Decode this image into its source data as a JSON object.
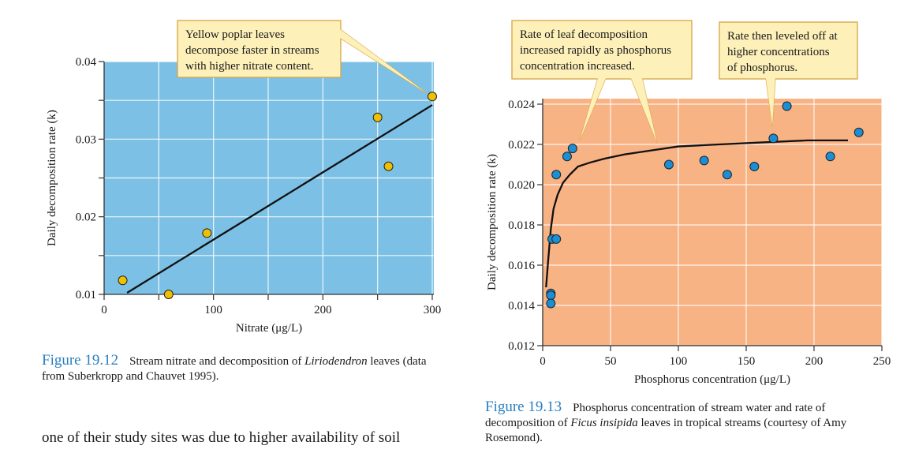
{
  "chart_data": [
    {
      "type": "scatter",
      "xlabel": "Nitrate (μg/L)",
      "ylabel": "Daily decomposition rate (k)",
      "xlim": [
        0,
        300
      ],
      "ylim": [
        0.01,
        0.04
      ],
      "x_ticks": [
        "0",
        "100",
        "200",
        "300"
      ],
      "y_ticks": [
        "0.01",
        "0.02",
        "0.03",
        "0.04"
      ],
      "grid": true,
      "background_color": "#7cc1e5",
      "point_color": "#f0c000",
      "points": [
        {
          "x": 17,
          "y": 0.0118
        },
        {
          "x": 59,
          "y": 0.01
        },
        {
          "x": 94,
          "y": 0.0179
        },
        {
          "x": 250,
          "y": 0.0328
        },
        {
          "x": 260,
          "y": 0.0265
        },
        {
          "x": 300,
          "y": 0.0355
        }
      ],
      "fit_line": [
        {
          "x": 21,
          "y": 0.0102
        },
        {
          "x": 300,
          "y": 0.0344
        }
      ],
      "annotation": [
        "Yellow poplar leaves",
        "decompose faster in streams",
        "with higher nitrate content."
      ]
    },
    {
      "type": "scatter",
      "xlabel": "Phosphorus concentration (μg/L)",
      "ylabel": "Daily decomposition rate (k)",
      "xlim": [
        0,
        250
      ],
      "ylim": [
        0.012,
        0.024
      ],
      "x_ticks": [
        "0",
        "50",
        "100",
        "150",
        "200",
        "250"
      ],
      "y_ticks": [
        "0.012",
        "0.014",
        "0.016",
        "0.018",
        "0.020",
        "0.022",
        "0.024"
      ],
      "grid": true,
      "background_color": "#f8b385",
      "point_color": "#1a8fd6",
      "points": [
        {
          "x": 6,
          "y": 0.0146
        },
        {
          "x": 6,
          "y": 0.0145
        },
        {
          "x": 6,
          "y": 0.0141
        },
        {
          "x": 7,
          "y": 0.0173
        },
        {
          "x": 10,
          "y": 0.0173
        },
        {
          "x": 10,
          "y": 0.0205
        },
        {
          "x": 18,
          "y": 0.0214
        },
        {
          "x": 22,
          "y": 0.0218
        },
        {
          "x": 93,
          "y": 0.021
        },
        {
          "x": 119,
          "y": 0.0212
        },
        {
          "x": 136,
          "y": 0.0205
        },
        {
          "x": 156,
          "y": 0.0209
        },
        {
          "x": 170,
          "y": 0.0223
        },
        {
          "x": 180,
          "y": 0.0239
        },
        {
          "x": 212,
          "y": 0.0214
        },
        {
          "x": 233,
          "y": 0.0226
        }
      ],
      "fit_curve": [
        {
          "x": 2.5,
          "y": 0.0149
        },
        {
          "x": 4,
          "y": 0.0162
        },
        {
          "x": 6,
          "y": 0.0178
        },
        {
          "x": 8,
          "y": 0.0188
        },
        {
          "x": 11,
          "y": 0.0195
        },
        {
          "x": 15,
          "y": 0.0201
        },
        {
          "x": 20,
          "y": 0.0205
        },
        {
          "x": 26,
          "y": 0.0209
        },
        {
          "x": 35,
          "y": 0.0211
        },
        {
          "x": 46,
          "y": 0.0213
        },
        {
          "x": 60,
          "y": 0.0215
        },
        {
          "x": 80,
          "y": 0.0217
        },
        {
          "x": 100,
          "y": 0.0219
        },
        {
          "x": 130,
          "y": 0.022
        },
        {
          "x": 162,
          "y": 0.0221
        },
        {
          "x": 195,
          "y": 0.0222
        },
        {
          "x": 225,
          "y": 0.0222
        }
      ],
      "annotations": [
        [
          "Rate of leaf decomposition",
          "increased rapidly as phosphorus",
          "concentration increased."
        ],
        [
          "Rate then leveled off at",
          "higher concentrations",
          "of phosphorus."
        ]
      ]
    }
  ],
  "captions": [
    {
      "label": "Figure 19.12",
      "before": "Stream nitrate and decomposition of ",
      "italic": "Liriodendron",
      "after": " leaves (data from Suberkropp and Chauvet 1995)."
    },
    {
      "label": "Figure 19.13",
      "before": "Phosphorus concentration of stream water and rate of decomposition of ",
      "italic": "Ficus insipida",
      "after": " leaves in tropical streams (courtesy of Amy Rosemond)."
    }
  ],
  "body_text": "one of their study sites was due to higher availability of soil",
  "colors": {
    "figure_label": "#2a7fc0",
    "callout_fill": "#fdf0b9",
    "callout_border": "#d8a443"
  }
}
